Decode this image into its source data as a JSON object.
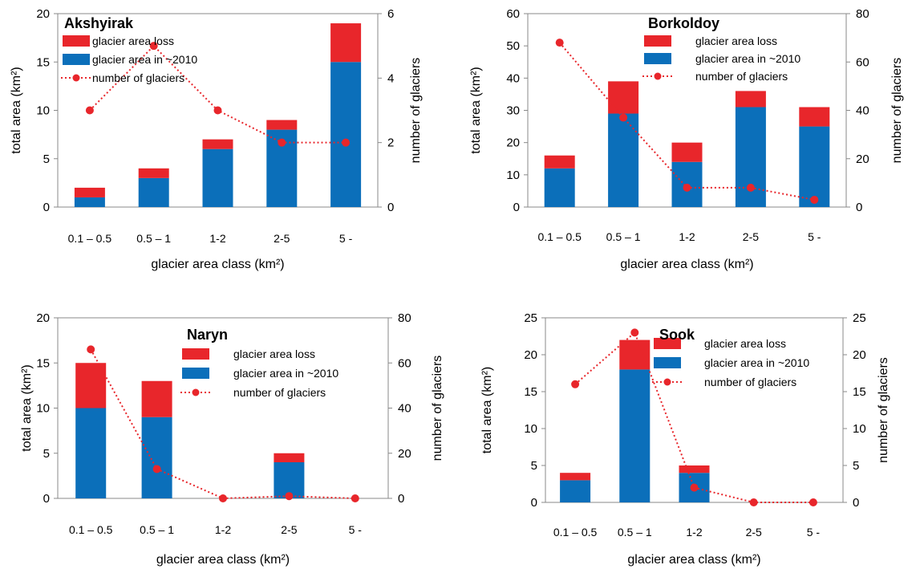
{
  "colors": {
    "loss": "#e8262b",
    "area": "#0b6fba",
    "count": "#e8262b",
    "axis": "#000000",
    "text": "#000000"
  },
  "chart_data": [
    {
      "type": "bar",
      "title": "Akshyirak",
      "xlabel": "glacier area class (km²)",
      "ylabel": "total area (km²)",
      "y2label": "number of glaciers",
      "categories": [
        "0.1 – 0.5",
        "0.5 – 1",
        "1-2",
        "2-5",
        "5 -"
      ],
      "ylim": [
        0,
        20
      ],
      "yticks": [
        0,
        5,
        10,
        15,
        20
      ],
      "y2lim": [
        0,
        6
      ],
      "y2ticks": [
        0,
        2,
        4,
        6
      ],
      "legend_position": "top-left",
      "series": [
        {
          "name": "glacier area loss",
          "kind": "stacked-bar",
          "values": [
            1,
            1,
            1,
            1,
            4
          ]
        },
        {
          "name": "glacier area in ~2010",
          "kind": "bar",
          "values": [
            1,
            3,
            6,
            8,
            15
          ]
        },
        {
          "name": "number of glaciers",
          "kind": "line",
          "axis": "right",
          "values": [
            3,
            5,
            3,
            2,
            2
          ]
        }
      ]
    },
    {
      "type": "bar",
      "title": "Borkoldoy",
      "xlabel": "glacier area class (km²)",
      "ylabel": "total area (km²)",
      "y2label": "number of glaciers",
      "categories": [
        "0.1 – 0.5",
        "0.5 – 1",
        "1-2",
        "2-5",
        "5 -"
      ],
      "ylim": [
        0,
        60
      ],
      "yticks": [
        0,
        10,
        20,
        30,
        40,
        50,
        60
      ],
      "y2lim": [
        0,
        80
      ],
      "y2ticks": [
        0,
        20,
        40,
        60,
        80
      ],
      "legend_position": "top-right",
      "series": [
        {
          "name": "glacier area loss",
          "kind": "stacked-bar",
          "values": [
            4,
            10,
            6,
            5,
            6
          ]
        },
        {
          "name": "glacier area in ~2010",
          "kind": "bar",
          "values": [
            12,
            29,
            14,
            31,
            25
          ]
        },
        {
          "name": "number of glaciers",
          "kind": "line",
          "axis": "right",
          "values": [
            68,
            37,
            8,
            8,
            3
          ]
        }
      ]
    },
    {
      "type": "bar",
      "title": "Naryn",
      "xlabel": "glacier area class (km²)",
      "ylabel": "total area (km²)",
      "y2label": "number of glaciers",
      "categories": [
        "0.1 – 0.5",
        "0.5 – 1",
        "1-2",
        "2-5",
        "5 -"
      ],
      "ylim": [
        0,
        20
      ],
      "yticks": [
        0,
        5,
        10,
        15,
        20
      ],
      "y2lim": [
        0,
        80
      ],
      "y2ticks": [
        0,
        20,
        40,
        60,
        80
      ],
      "legend_position": "top-right",
      "series": [
        {
          "name": "glacier area loss",
          "kind": "stacked-bar",
          "values": [
            5,
            4,
            0,
            1,
            0
          ]
        },
        {
          "name": "glacier area in ~2010",
          "kind": "bar",
          "values": [
            10,
            9,
            0,
            4,
            0
          ]
        },
        {
          "name": "number of glaciers",
          "kind": "line",
          "axis": "right",
          "values": [
            66,
            13,
            0,
            1,
            0
          ]
        }
      ]
    },
    {
      "type": "bar",
      "title": "Sook",
      "xlabel": "glacier area class (km²)",
      "ylabel": "total area (km²)",
      "y2label": "number of glaciers",
      "categories": [
        "0.1 – 0.5",
        "0.5 – 1",
        "1-2",
        "2-5",
        "5 -"
      ],
      "ylim": [
        0,
        25
      ],
      "yticks": [
        0,
        5,
        10,
        15,
        20,
        25
      ],
      "y2lim": [
        0,
        25
      ],
      "y2ticks": [
        0,
        5,
        10,
        15,
        20,
        25
      ],
      "legend_position": "top-right",
      "series": [
        {
          "name": "glacier area loss",
          "kind": "stacked-bar",
          "values": [
            1,
            4,
            1,
            0,
            0
          ]
        },
        {
          "name": "glacier area in ~2010",
          "kind": "bar",
          "values": [
            3,
            18,
            4,
            0,
            0
          ]
        },
        {
          "name": "number of glaciers",
          "kind": "line",
          "axis": "right",
          "values": [
            16,
            23,
            2,
            0,
            0
          ]
        }
      ]
    }
  ]
}
